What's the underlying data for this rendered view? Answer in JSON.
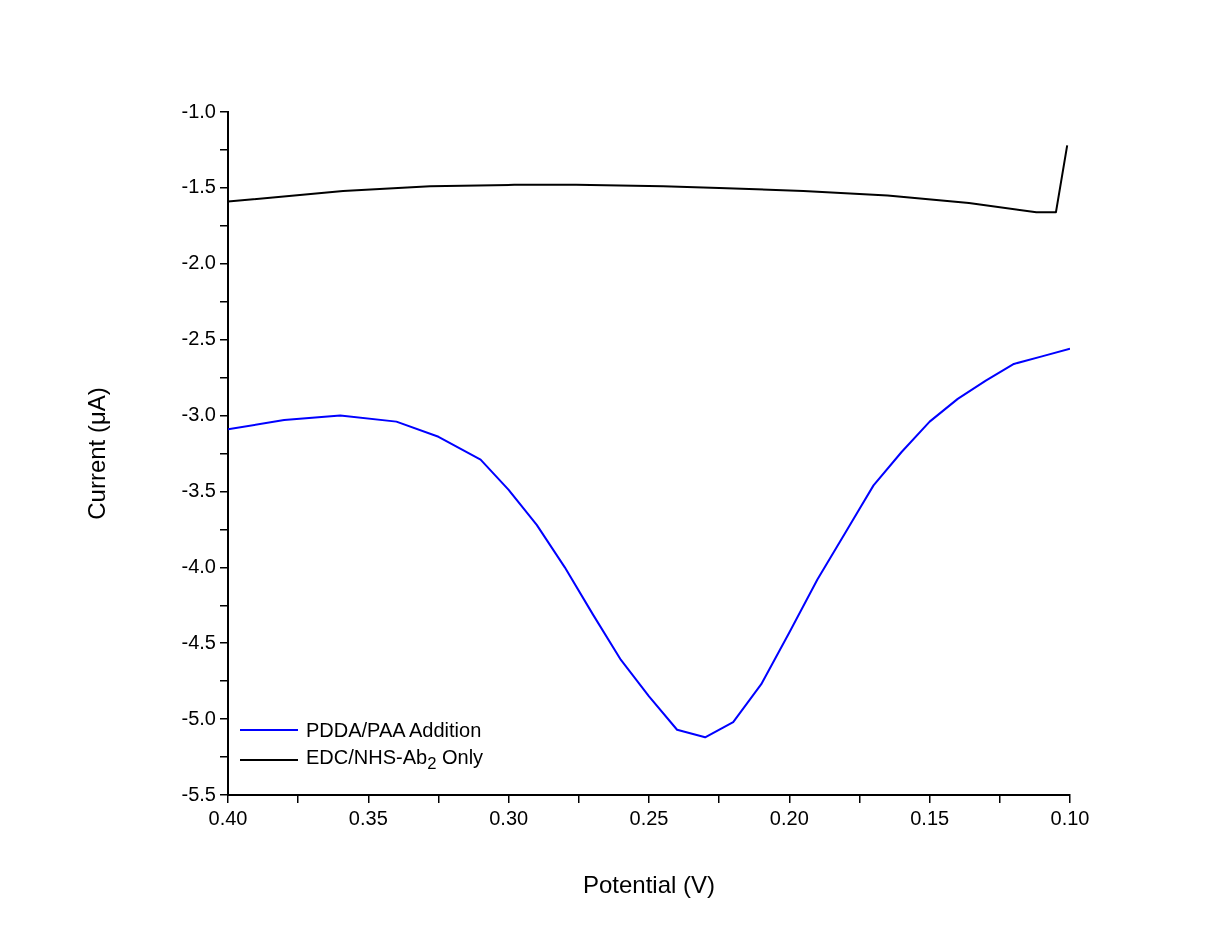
{
  "chart_data": {
    "type": "line",
    "xlabel": "Potential (V)",
    "ylabel": "Current (μA)",
    "xlim": [
      0.4,
      0.1
    ],
    "ylim": [
      -5.5,
      -1.0
    ],
    "xticks": [
      {
        "value": 0.4,
        "label": "0.40"
      },
      {
        "value": 0.375,
        "label": null
      },
      {
        "value": 0.35,
        "label": "0.35"
      },
      {
        "value": 0.325,
        "label": null
      },
      {
        "value": 0.3,
        "label": "0.30"
      },
      {
        "value": 0.275,
        "label": null
      },
      {
        "value": 0.25,
        "label": "0.25"
      },
      {
        "value": 0.225,
        "label": null
      },
      {
        "value": 0.2,
        "label": "0.20"
      },
      {
        "value": 0.175,
        "label": null
      },
      {
        "value": 0.15,
        "label": "0.15"
      },
      {
        "value": 0.125,
        "label": null
      },
      {
        "value": 0.1,
        "label": "0.10"
      }
    ],
    "yticks": [
      {
        "value": -5.5,
        "label": "-5.5"
      },
      {
        "value": -5.25,
        "label": null
      },
      {
        "value": -5.0,
        "label": "-5.0"
      },
      {
        "value": -4.75,
        "label": null
      },
      {
        "value": -4.5,
        "label": "-4.5"
      },
      {
        "value": -4.25,
        "label": null
      },
      {
        "value": -4.0,
        "label": "-4.0"
      },
      {
        "value": -3.75,
        "label": null
      },
      {
        "value": -3.5,
        "label": "-3.5"
      },
      {
        "value": -3.25,
        "label": null
      },
      {
        "value": -3.0,
        "label": "-3.0"
      },
      {
        "value": -2.75,
        "label": null
      },
      {
        "value": -2.5,
        "label": "-2.5"
      },
      {
        "value": -2.25,
        "label": null
      },
      {
        "value": -2.0,
        "label": "-2.0"
      },
      {
        "value": -1.75,
        "label": null
      },
      {
        "value": -1.5,
        "label": "-1.5"
      },
      {
        "value": -1.25,
        "label": null
      },
      {
        "value": -1.0,
        "label": "-1.0"
      }
    ],
    "grid": false,
    "legend": "bottom left",
    "marker": "none",
    "line_style": "solid",
    "series": [
      {
        "name": "PDDA/PAA Addition",
        "color": "#0000ff",
        "x": [
          0.4,
          0.38,
          0.36,
          0.34,
          0.325,
          0.31,
          0.3,
          0.29,
          0.28,
          0.27,
          0.26,
          0.25,
          0.24,
          0.23,
          0.22,
          0.21,
          0.2,
          0.19,
          0.18,
          0.17,
          0.16,
          0.15,
          0.14,
          0.13,
          0.12,
          0.11,
          0.1
        ],
        "values": [
          -3.09,
          -3.03,
          -3.0,
          -3.04,
          -3.14,
          -3.29,
          -3.49,
          -3.72,
          -4.0,
          -4.31,
          -4.61,
          -4.85,
          -5.07,
          -5.12,
          -5.02,
          -4.77,
          -4.43,
          -4.08,
          -3.77,
          -3.46,
          -3.24,
          -3.04,
          -2.89,
          -2.77,
          -2.66,
          -2.61,
          -2.56
        ]
      },
      {
        "name": "EDC/NHS-Ab$_{2}$ Only",
        "color": "#000000",
        "x": [
          0.4,
          0.359,
          0.328,
          0.298,
          0.276,
          0.245,
          0.225,
          0.195,
          0.165,
          0.136,
          0.112,
          0.105,
          0.101
        ],
        "values": [
          -1.59,
          -1.52,
          -1.49,
          -1.48,
          -1.48,
          -1.49,
          -1.5,
          -1.52,
          -1.55,
          -1.6,
          -1.66,
          -1.66,
          -1.22
        ]
      }
    ]
  }
}
